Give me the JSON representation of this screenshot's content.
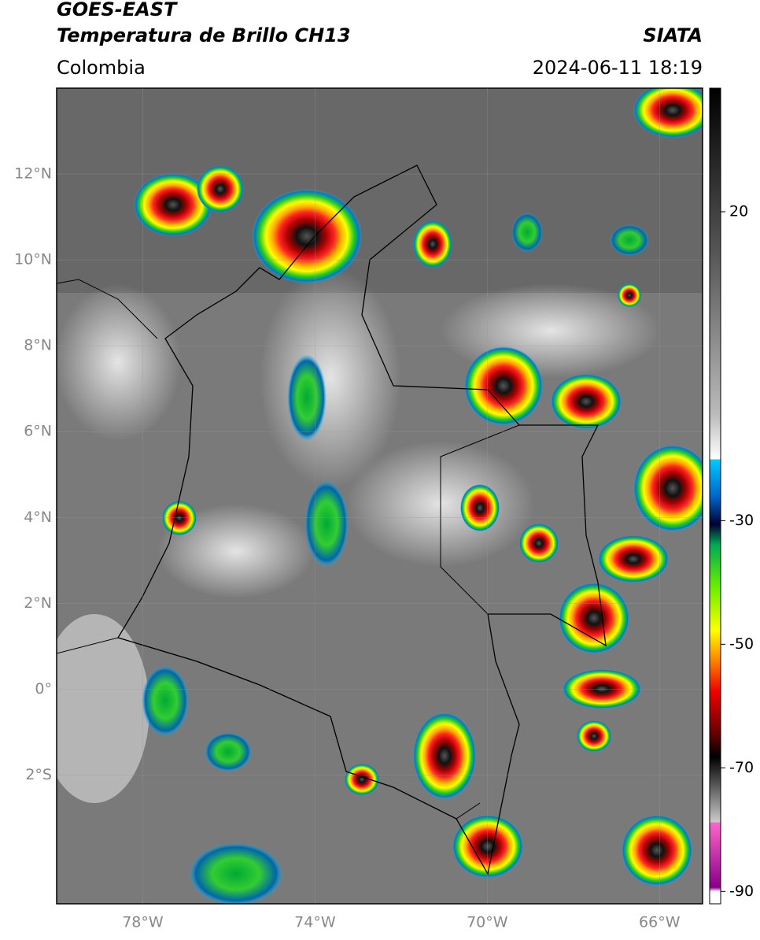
{
  "header": {
    "title": "GOES-EAST",
    "subtitle": "Temperatura de Brillo CH13",
    "region": "Colombia",
    "source": "SIATA",
    "datetime": "2024-06-11 18:19"
  },
  "map": {
    "lonlim": [
      -80,
      -65
    ],
    "latlim": [
      -5,
      14
    ],
    "lat_ticks": [
      {
        "value": 12,
        "label": "12°N"
      },
      {
        "value": 10,
        "label": "10°N"
      },
      {
        "value": 8,
        "label": "8°N"
      },
      {
        "value": 6,
        "label": "6°N"
      },
      {
        "value": 4,
        "label": "4°N"
      },
      {
        "value": 2,
        "label": "2°N"
      },
      {
        "value": 0,
        "label": "0°"
      },
      {
        "value": -2,
        "label": "2°S"
      }
    ],
    "lon_ticks": [
      {
        "value": -78,
        "label": "78°W"
      },
      {
        "value": -74,
        "label": "74°W"
      },
      {
        "value": -70,
        "label": "70°W"
      },
      {
        "value": -66,
        "label": "66°W"
      }
    ]
  },
  "colorbar": {
    "lim": [
      -92,
      40
    ],
    "ticks": [
      20,
      -30,
      -50,
      -70,
      -90
    ]
  }
}
